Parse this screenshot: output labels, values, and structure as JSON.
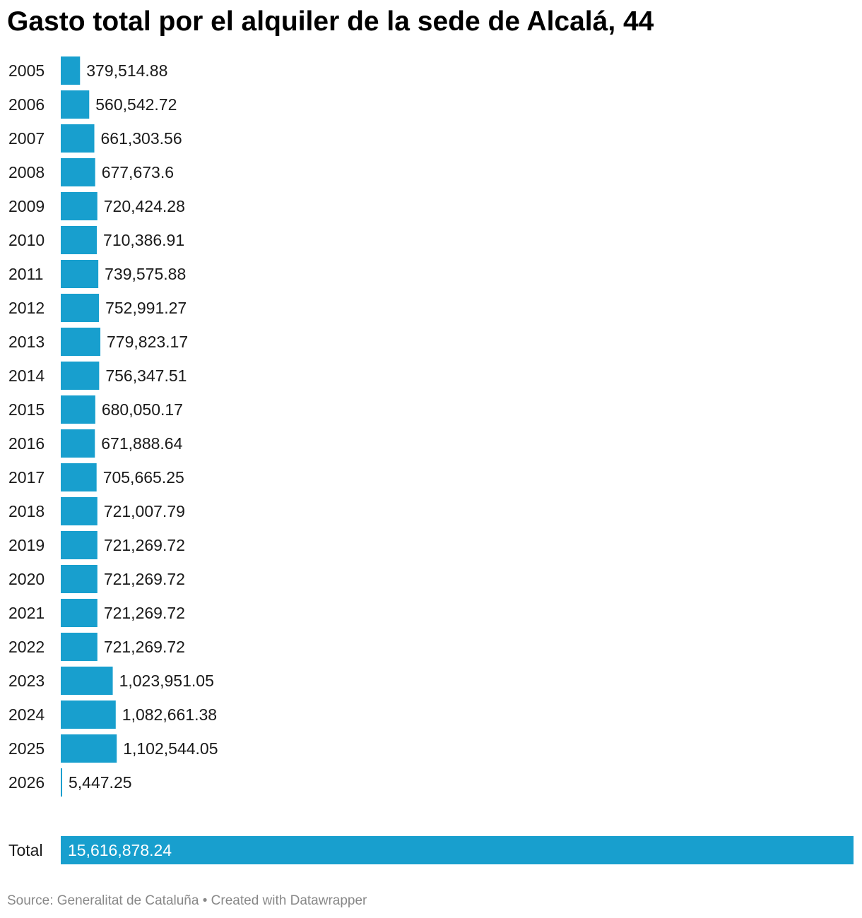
{
  "title": "Gasto total por el alquiler de la sede de Alcalá, 44",
  "footer": {
    "source": "Source: Generalitat de Cataluña",
    "separator": " • ",
    "credit": "Created with Datawrapper"
  },
  "colors": {
    "bar": "#189fce",
    "label_outside": "#1a1a1a",
    "label_inside": "#ffffff"
  },
  "chart_data": {
    "type": "bar",
    "orientation": "horizontal",
    "categories": [
      "2005",
      "2006",
      "2007",
      "2008",
      "2009",
      "2010",
      "2011",
      "2012",
      "2013",
      "2014",
      "2015",
      "2016",
      "2017",
      "2018",
      "2019",
      "2020",
      "2021",
      "2022",
      "2023",
      "2024",
      "2025",
      "2026"
    ],
    "values": [
      379514.88,
      560542.72,
      661303.56,
      677673.6,
      720424.28,
      710386.91,
      739575.88,
      752991.27,
      779823.17,
      756347.51,
      680050.17,
      671888.64,
      705665.25,
      721007.79,
      721269.72,
      721269.72,
      721269.72,
      721269.72,
      1023951.05,
      1082661.38,
      1102544.05,
      5447.25
    ],
    "value_labels": [
      "379,514.88",
      "560,542.72",
      "661,303.56",
      "677,673.6",
      "720,424.28",
      "710,386.91",
      "739,575.88",
      "752,991.27",
      "779,823.17",
      "756,347.51",
      "680,050.17",
      "671,888.64",
      "705,665.25",
      "721,007.79",
      "721,269.72",
      "721,269.72",
      "721,269.72",
      "721,269.72",
      "1,023,951.05",
      "1,082,661.38",
      "1,102,544.05",
      "5,447.25"
    ],
    "total": {
      "label": "Total",
      "value": 15616878.24,
      "value_label": "15,616,878.24"
    },
    "xlim": [
      0,
      15616878.24
    ],
    "grid": false
  }
}
